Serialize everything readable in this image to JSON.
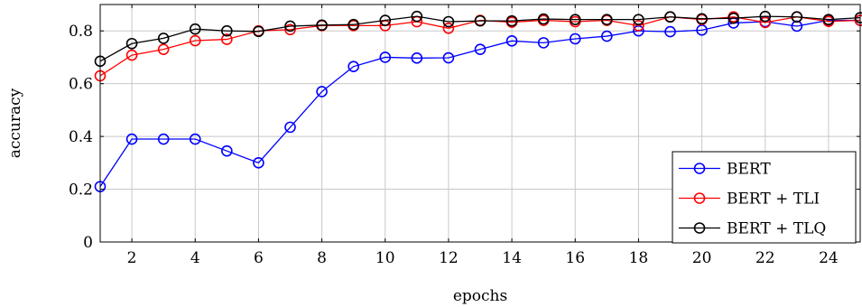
{
  "chart_data": {
    "type": "line",
    "title": "",
    "xlabel": "epochs",
    "ylabel": "accuracy",
    "xlim": [
      1,
      25
    ],
    "ylim": [
      0,
      0.9
    ],
    "xticks": [
      2,
      4,
      6,
      8,
      10,
      12,
      14,
      16,
      18,
      20,
      22,
      24
    ],
    "xtick_labels": [
      "2",
      "4",
      "6",
      "8",
      "10",
      "12",
      "14",
      "16",
      "18",
      "20",
      "22",
      "24"
    ],
    "yticks": [
      0,
      0.2,
      0.4,
      0.6,
      0.8
    ],
    "ytick_labels": [
      "0",
      "0.2",
      "0.4",
      "0.6",
      "0.8"
    ],
    "grid": true,
    "legend_position": "bottom-right",
    "x": [
      1,
      2,
      3,
      4,
      5,
      6,
      7,
      8,
      9,
      10,
      11,
      12,
      13,
      14,
      15,
      16,
      17,
      18,
      19,
      20,
      21,
      22,
      23,
      24,
      25
    ],
    "series": [
      {
        "name": "BERT",
        "color": "#0000ff",
        "values": [
          0.21,
          0.39,
          0.39,
          0.39,
          0.345,
          0.3,
          0.435,
          0.57,
          0.665,
          0.7,
          0.697,
          0.698,
          0.73,
          0.762,
          0.755,
          0.77,
          0.78,
          0.8,
          0.797,
          0.803,
          0.83,
          0.835,
          0.818,
          0.84,
          0.84
        ]
      },
      {
        "name": "BERT + TLI",
        "color": "#ff0000",
        "values": [
          0.63,
          0.708,
          0.73,
          0.763,
          0.768,
          0.8,
          0.805,
          0.82,
          0.82,
          0.82,
          0.835,
          0.81,
          0.84,
          0.833,
          0.84,
          0.835,
          0.84,
          0.82,
          0.853,
          0.843,
          0.853,
          0.832,
          0.853,
          0.836,
          0.84
        ]
      },
      {
        "name": "BERT + TLQ",
        "color": "#000000",
        "values": [
          0.685,
          0.752,
          0.772,
          0.807,
          0.8,
          0.798,
          0.818,
          0.822,
          0.824,
          0.84,
          0.855,
          0.835,
          0.838,
          0.838,
          0.845,
          0.843,
          0.843,
          0.843,
          0.853,
          0.846,
          0.848,
          0.855,
          0.853,
          0.843,
          0.85
        ]
      }
    ]
  }
}
